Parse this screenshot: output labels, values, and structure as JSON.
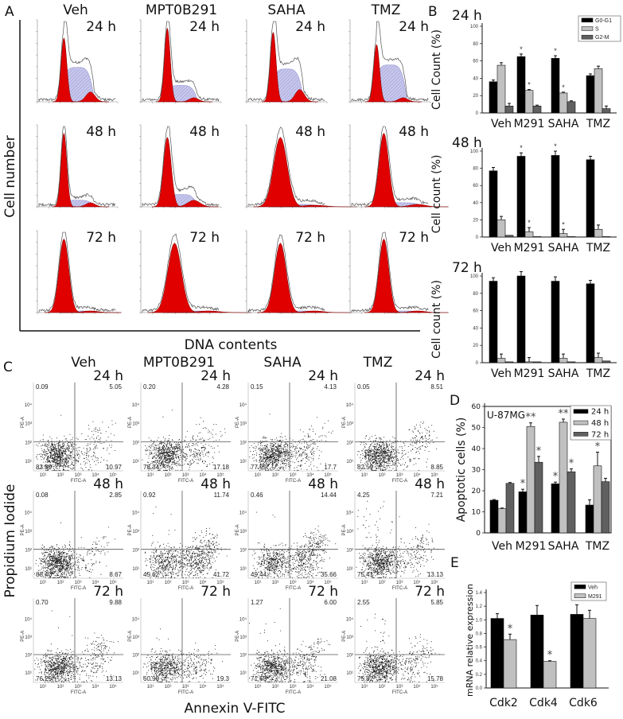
{
  "panel_labels": {
    "a": "A",
    "b": "B",
    "c": "C",
    "d": "D",
    "e": "E"
  },
  "panel_a": {
    "columns": [
      "Veh",
      "MPT0B291",
      "SAHA",
      "TMZ"
    ],
    "rows": [
      "24 h",
      "48 h",
      "72 h"
    ],
    "ylabel": "Cell number",
    "xlabel": "DNA contents",
    "colors": {
      "g1_peak": "#e00000",
      "s_phase": "#c8c8ee",
      "outline": "#555555"
    }
  },
  "panel_c": {
    "columns": [
      "Veh",
      "MPT0B291",
      "SAHA",
      "TMZ"
    ],
    "rows": [
      "24 h",
      "48 h",
      "72 h"
    ],
    "ylabel": "Propidium Iodide",
    "xlabel": "Annexin V-FITC",
    "axis_x": "FITC-A",
    "axis_y": "PE-A",
    "tick_labels": [
      "10¹",
      "10²",
      "10³",
      "10⁴",
      "10⁵"
    ],
    "quadrants": [
      [
        {
          "ul": "0.09",
          "ur": "5.05",
          "ll": "83.89",
          "lr": "10.97"
        },
        {
          "ul": "0.20",
          "ur": "4.28",
          "ll": "78.34",
          "lr": "17.18"
        },
        {
          "ul": "0.15",
          "ur": "4.13",
          "ll": "77.99",
          "lr": "17.7"
        },
        {
          "ul": "0.05",
          "ur": "8.51",
          "ll": "82.59",
          "lr": "8.85"
        }
      ],
      [
        {
          "ul": "0.08",
          "ur": "2.85",
          "ll": "88.40",
          "lr": "8.67"
        },
        {
          "ul": "0.92",
          "ur": "11.74",
          "ll": "45.62",
          "lr": "41.72"
        },
        {
          "ul": "0.46",
          "ur": "14.44",
          "ll": "49.44",
          "lr": "35.66"
        },
        {
          "ul": "4.25",
          "ur": "7.21",
          "ll": "75.41",
          "lr": "13.13"
        }
      ],
      [
        {
          "ul": "0.70",
          "ur": "9.88",
          "ll": "76.29",
          "lr": "13.13"
        },
        {
          "ul": "",
          "ur": "",
          "ll": "60.90",
          "lr": "19.3"
        },
        {
          "ul": "1.27",
          "ur": "6.00",
          "ll": "71.65",
          "lr": "21.08"
        },
        {
          "ul": "2.55",
          "ur": "5.85",
          "ll": "75.82",
          "lr": "15.78"
        }
      ]
    ]
  },
  "chart_data": [
    {
      "id": "B-24h",
      "type": "bar",
      "title": "24 h",
      "ylabel": "Cell Count (%)",
      "ylim": [
        0,
        100
      ],
      "yticks": [
        0,
        20,
        40,
        60,
        80,
        100
      ],
      "categories": [
        "Veh",
        "M291",
        "SAHA",
        "TMZ"
      ],
      "legend": "top-right",
      "series": [
        {
          "name": "G0-G1",
          "color": "#000000",
          "values": [
            36,
            65,
            63,
            43
          ],
          "errors": [
            2,
            3,
            3,
            2
          ],
          "stars": [
            "",
            "*",
            "*",
            ""
          ]
        },
        {
          "name": "S",
          "color": "#c0c0c0",
          "values": [
            55,
            26,
            23,
            51
          ],
          "errors": [
            3,
            1,
            1,
            3
          ],
          "stars": [
            "",
            "*",
            "*",
            ""
          ]
        },
        {
          "name": "G2-M",
          "color": "#606060",
          "values": [
            8,
            8,
            13,
            5
          ],
          "errors": [
            3,
            1,
            1,
            3
          ],
          "stars": [
            "",
            "",
            "",
            ""
          ]
        }
      ]
    },
    {
      "id": "B-48h",
      "type": "bar",
      "title": "48 h",
      "ylabel": "Cell count (%)",
      "ylim": [
        0,
        100
      ],
      "yticks": [
        0,
        20,
        40,
        60,
        80,
        100
      ],
      "categories": [
        "Veh",
        "M291",
        "SAHA",
        "TMZ"
      ],
      "series": [
        {
          "color": "#000000",
          "values": [
            77,
            94,
            95,
            90
          ],
          "errors": [
            4,
            4,
            5,
            4
          ],
          "stars": [
            "",
            "*",
            "*",
            ""
          ]
        },
        {
          "color": "#c0c0c0",
          "values": [
            20,
            6,
            4,
            9
          ],
          "errors": [
            4,
            5,
            5,
            5
          ],
          "stars": [
            "",
            "*",
            "*",
            ""
          ]
        },
        {
          "color": "#606060",
          "values": [
            2,
            0.5,
            0.5,
            0.5
          ],
          "errors": [
            0,
            0,
            0,
            0
          ],
          "stars": [
            "",
            "",
            "",
            ""
          ]
        }
      ]
    },
    {
      "id": "B-72h",
      "type": "bar",
      "title": "72 h",
      "ylabel": "Cell count (%)",
      "ylim": [
        0,
        100
      ],
      "yticks": [
        0,
        20,
        40,
        60,
        80,
        100
      ],
      "categories": [
        "Veh",
        "M291",
        "SAHA",
        "TMZ"
      ],
      "series": [
        {
          "color": "#000000",
          "values": [
            94,
            100,
            94,
            91
          ],
          "errors": [
            4,
            5,
            5,
            4
          ],
          "stars": [
            "",
            "",
            "",
            ""
          ]
        },
        {
          "color": "#c0c0c0",
          "values": [
            5,
            1,
            5,
            6
          ],
          "errors": [
            5,
            5,
            5,
            5
          ],
          "stars": [
            "",
            "",
            "",
            ""
          ]
        },
        {
          "color": "#606060",
          "values": [
            1,
            1,
            1,
            2
          ],
          "errors": [
            0,
            0,
            0,
            0
          ],
          "stars": [
            "",
            "",
            "",
            ""
          ]
        }
      ]
    },
    {
      "id": "D",
      "type": "bar",
      "title": "U-87MG",
      "ylabel": "Apoptotic cells (%)",
      "ylim": [
        0,
        60
      ],
      "yticks": [
        0,
        10,
        20,
        30,
        40,
        50,
        60
      ],
      "categories": [
        "Veh",
        "M291",
        "SAHA",
        "TMZ"
      ],
      "legend": "top-right",
      "series": [
        {
          "name": "24 h",
          "color": "#000000",
          "values": [
            15.5,
            19.5,
            23.3,
            13.2
          ],
          "errors": [
            0.3,
            1.2,
            0.8,
            2.5
          ],
          "stars": [
            "",
            "*",
            "*",
            ""
          ]
        },
        {
          "name": "48 h",
          "color": "#c0c0c0",
          "values": [
            11.5,
            50.5,
            52.5,
            31.8
          ],
          "errors": [
            0.3,
            1.7,
            1.5,
            6.5
          ],
          "stars": [
            "",
            "**",
            "**",
            "*"
          ]
        },
        {
          "name": "72 h",
          "color": "#606060",
          "values": [
            23.5,
            33.5,
            29,
            24.3
          ],
          "errors": [
            0.4,
            2.8,
            1.4,
            1.6
          ],
          "stars": [
            "",
            "*",
            "*",
            ""
          ]
        }
      ]
    },
    {
      "id": "E",
      "type": "bar",
      "ylabel": "mRNA relative expression",
      "ylim": [
        0,
        1.4
      ],
      "yticks": [
        "0.0",
        "0.2",
        "0.4",
        "0.6",
        "0.8",
        "1.0",
        "1.2",
        "1.4"
      ],
      "categories": [
        "Cdk2",
        "Cdk4",
        "Cdk6"
      ],
      "legend": "top-right",
      "series": [
        {
          "name": "Veh",
          "color": "#000000",
          "values": [
            1.02,
            1.07,
            1.08
          ],
          "errors": [
            0.07,
            0.14,
            0.14
          ],
          "stars": [
            "",
            "",
            ""
          ]
        },
        {
          "name": "M291",
          "color": "#c0c0c0",
          "values": [
            0.71,
            0.39,
            1.02
          ],
          "errors": [
            0.08,
            0.01,
            0.12
          ],
          "stars": [
            "*",
            "*",
            ""
          ]
        }
      ]
    }
  ]
}
